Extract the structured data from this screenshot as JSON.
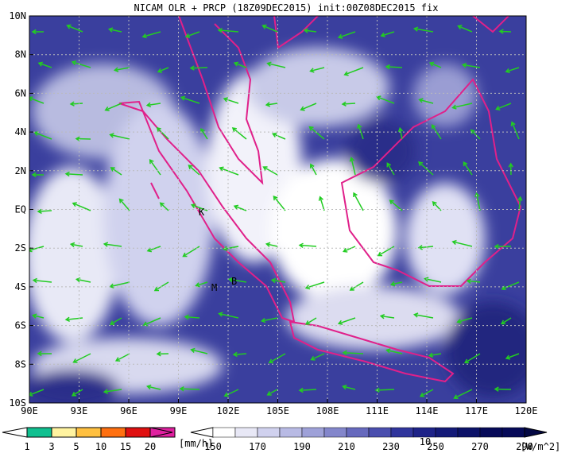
{
  "header": {
    "title": "NICAM OLR + PRCP (18Z09DEC2015) init:00Z08DEC2015 fix"
  },
  "map": {
    "lat_labels": [
      "10N",
      "8N",
      "6N",
      "4N",
      "2N",
      "EQ",
      "2S",
      "4S",
      "6S",
      "8S",
      "10S"
    ],
    "lon_labels": [
      "90E",
      "93E",
      "96E",
      "99E",
      "102E",
      "105E",
      "108E",
      "111E",
      "114E",
      "117E",
      "120E"
    ],
    "places": [
      {
        "label": "K"
      },
      {
        "label": "M"
      },
      {
        "label": "B"
      }
    ],
    "vector_key": "10"
  },
  "precip_scale": {
    "labels": [
      "1",
      "3",
      "5",
      "10",
      "15",
      "20"
    ],
    "unit": "[mm/h]"
  },
  "olr_scale": {
    "labels": [
      "150",
      "170",
      "190",
      "210",
      "230",
      "250",
      "270",
      "290"
    ],
    "unit": "[W/m^2]"
  }
}
